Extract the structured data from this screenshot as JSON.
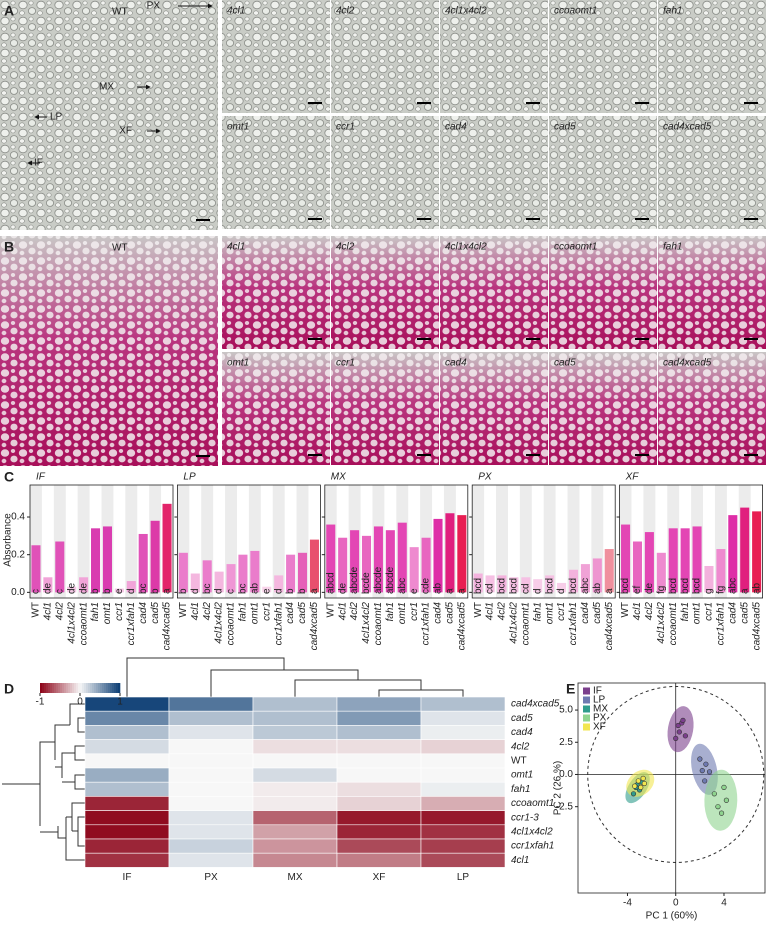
{
  "panel_labels": [
    "A",
    "B",
    "C",
    "D",
    "E"
  ],
  "micrographs": {
    "A": {
      "main": "WT",
      "panels": [
        "4cl1",
        "4cl2",
        "4cl1x4cl2",
        "ccoaomt1",
        "fah1",
        "omt1",
        "ccr1",
        "cad4",
        "cad5",
        "cad4xcad5"
      ],
      "annotations": [
        "PX",
        "MX",
        "LP",
        "XF",
        "IF"
      ]
    },
    "B": {
      "main": "WT",
      "panels": [
        "4cl1",
        "4cl2",
        "4cl1x4cl2",
        "ccoaomt1",
        "fah1",
        "omt1",
        "ccr1",
        "cad4",
        "cad5",
        "cad4xcad5"
      ]
    }
  },
  "chart_data": [
    {
      "type": "bar",
      "title": "IF",
      "ylabel": "Absorbance",
      "categories": [
        "WT",
        "4cl1",
        "4cl2",
        "4cl1x4cl2",
        "ccoaomt1",
        "fah1",
        "omt1",
        "ccr1",
        "ccr1xfah1",
        "cad4",
        "cad5",
        "cad4xcad5"
      ],
      "values": [
        0.25,
        0.08,
        0.27,
        0.03,
        0.08,
        0.34,
        0.35,
        0.02,
        0.06,
        0.31,
        0.38,
        0.47
      ],
      "value_labels": [
        "c",
        "de",
        "c",
        "de",
        "de",
        "b",
        "b",
        "e",
        "d",
        "bc",
        "b",
        "a"
      ],
      "colors": [
        "#e052b8",
        "#f1a4d8",
        "#e052b8",
        "#f6c8e6",
        "#f1a4d8",
        "#d93cb0",
        "#d93cb0",
        "#f6c8e6",
        "#f1a4d8",
        "#e052b8",
        "#dc3aa8",
        "#e3246a"
      ],
      "ylim": [
        -0.03,
        0.57
      ],
      "yticks": [
        {
          "value": 0,
          "label": "0.0"
        },
        0.2,
        0.4
      ]
    },
    {
      "type": "bar",
      "title": "LP",
      "categories": [
        "WT",
        "4cl1",
        "4cl2",
        "4cl1x4cl2",
        "ccoaomt1",
        "fah1",
        "omt1",
        "ccr1",
        "ccr1xfah1",
        "cad4",
        "cad5",
        "cad4xcad5"
      ],
      "values": [
        0.21,
        0.1,
        0.17,
        0.11,
        0.15,
        0.2,
        0.22,
        0.03,
        0.09,
        0.2,
        0.21,
        0.28
      ],
      "value_labels": [
        "b",
        "d",
        "bc",
        "d",
        "c",
        "bc",
        "ab",
        "e",
        "d",
        "b",
        "b",
        "a"
      ],
      "colors": [
        "#ea7ccb",
        "#f4b7df",
        "#ea7ccb",
        "#f4b7df",
        "#ef96d5",
        "#ea7ccb",
        "#ea7ccb",
        "#f8d3ea",
        "#f4b7df",
        "#ea7ccb",
        "#e560b8",
        "#e8506e"
      ],
      "ylim": [
        -0.03,
        0.57
      ]
    },
    {
      "type": "bar",
      "title": "MX",
      "categories": [
        "WT",
        "4cl1",
        "4cl2",
        "4cl1x4cl2",
        "ccoaomt1",
        "fah1",
        "omt1",
        "ccr1",
        "ccr1xfah1",
        "cad4",
        "cad5",
        "cad4xcad5"
      ],
      "values": [
        0.36,
        0.29,
        0.33,
        0.3,
        0.35,
        0.33,
        0.37,
        0.24,
        0.29,
        0.39,
        0.42,
        0.41
      ],
      "value_labels": [
        "abcd",
        "de",
        "abcde",
        "bcde",
        "abcde",
        "abcde",
        "abc",
        "e",
        "cde",
        "ab",
        "a",
        "a"
      ],
      "colors": [
        "#e346b4",
        "#e866c0",
        "#e346b4",
        "#e866c0",
        "#e346b4",
        "#e346b4",
        "#e346b4",
        "#ee8acf",
        "#e866c0",
        "#de2ea7",
        "#e01f7e",
        "#e81e52"
      ],
      "ylim": [
        -0.03,
        0.57
      ]
    },
    {
      "type": "bar",
      "title": "PX",
      "categories": [
        "WT",
        "4cl1",
        "4cl2",
        "4cl1x4cl2",
        "ccoaomt1",
        "fah1",
        "omt1",
        "ccr1",
        "ccr1xfah1",
        "cad4",
        "cad5",
        "cad4xcad5"
      ],
      "values": [
        0.1,
        0.09,
        0.09,
        0.08,
        0.08,
        0.07,
        0.09,
        0.05,
        0.12,
        0.15,
        0.18,
        0.23
      ],
      "value_labels": [
        "bcd",
        "cd",
        "bcd",
        "bcd",
        "cd",
        "d",
        "bcd",
        "d",
        "bcd",
        "abc",
        "ab",
        "a"
      ],
      "colors": [
        "#f3b2dd",
        "#f5c0e3",
        "#f3b2dd",
        "#f5c0e3",
        "#f5c0e3",
        "#f7cde8",
        "#f5c0e3",
        "#f7cde8",
        "#f3b2dd",
        "#f0a2d6",
        "#ee95d0",
        "#f0909e"
      ],
      "ylim": [
        -0.03,
        0.57
      ]
    },
    {
      "type": "bar",
      "title": "XF",
      "categories": [
        "WT",
        "4cl1",
        "4cl2",
        "4cl1x4cl2",
        "ccoaomt1",
        "fah1",
        "omt1",
        "ccr1",
        "ccr1xfah1",
        "cad4",
        "cad5",
        "cad4xcad5"
      ],
      "values": [
        0.36,
        0.27,
        0.32,
        0.21,
        0.34,
        0.34,
        0.35,
        0.14,
        0.23,
        0.41,
        0.45,
        0.43
      ],
      "value_labels": [
        "bcd",
        "ef",
        "de",
        "fg",
        "bcd",
        "bcd",
        "bcd",
        "g",
        "fg",
        "abc",
        "a",
        "ab"
      ],
      "colors": [
        "#e346b4",
        "#e866c0",
        "#e346b4",
        "#ee8acf",
        "#e346b4",
        "#e346b4",
        "#e346b4",
        "#f3b2dd",
        "#ee8acf",
        "#de2ea7",
        "#e01f7e",
        "#e81e52"
      ],
      "ylim": [
        -0.03,
        0.57
      ]
    },
    {
      "type": "heatmap",
      "columns": [
        "IF",
        "PX",
        "MX",
        "XF",
        "LP"
      ],
      "rows": [
        "cad4xcad5",
        "cad5",
        "cad4",
        "4cl2",
        "WT",
        "omt1",
        "fah1",
        "ccoaomt1",
        "ccr1-3",
        "4cl1x4cl2",
        "ccr1xfah1",
        "4cl1"
      ],
      "values": [
        [
          0.95,
          0.7,
          0.3,
          0.45,
          0.3
        ],
        [
          0.6,
          0.3,
          0.3,
          0.5,
          0.1
        ],
        [
          0.3,
          0.1,
          0.25,
          0.3,
          0.05
        ],
        [
          0.15,
          0,
          -0.1,
          -0.1,
          -0.15
        ],
        [
          0,
          0,
          0,
          0,
          0
        ],
        [
          0.4,
          0,
          0.15,
          0,
          0
        ],
        [
          0.3,
          0,
          -0.05,
          -0.1,
          0.05
        ],
        [
          -0.85,
          0,
          -0.05,
          -0.15,
          -0.3
        ],
        [
          -0.95,
          0.1,
          -0.6,
          -0.9,
          -0.9
        ],
        [
          -0.95,
          0.1,
          -0.35,
          -0.85,
          -0.8
        ],
        [
          -0.85,
          0.2,
          -0.4,
          -0.7,
          -0.75
        ],
        [
          -0.8,
          0.1,
          -0.45,
          -0.5,
          -0.7
        ]
      ],
      "colorscale": {
        "low": "#8b0015",
        "mid": "#f7f7f7",
        "high": "#0b3d73"
      },
      "zlim": [
        -1,
        1
      ],
      "zticks": [
        -1,
        0,
        1
      ]
    },
    {
      "type": "scatter",
      "xlabel": "PC 1 (60%)",
      "ylabel": "PC 2 (26 %)",
      "xlim": [
        -8.1,
        7.4
      ],
      "ylim": [
        -9.2,
        7.1
      ],
      "xticks": [
        -4,
        0,
        4
      ],
      "yticks": [
        -2.5,
        {
          "value": 0,
          "label": "0.0"
        },
        2.5,
        {
          "value": 5,
          "label": "5.0"
        }
      ],
      "series": [
        {
          "name": "IF",
          "color": "#7b3f8c",
          "x": [
            0,
            0.2,
            0.5,
            0.3,
            0.6,
            0.8
          ],
          "y": [
            2.8,
            3.8,
            4.0,
            3.3,
            4.2,
            3.0
          ]
        },
        {
          "name": "LP",
          "color": "#6e79b0",
          "x": [
            2.0,
            2.5,
            2.2,
            2.8,
            2.4
          ],
          "y": [
            1.2,
            0.8,
            0.3,
            0.2,
            -0.5
          ]
        },
        {
          "name": "MX",
          "color": "#2f9c8c",
          "x": [
            -3.2,
            -3.0,
            -3.5,
            -2.8,
            -3.3
          ],
          "y": [
            -0.8,
            -1.2,
            -1.5,
            -0.6,
            -1.0
          ]
        },
        {
          "name": "PX",
          "color": "#8fd48f",
          "x": [
            3.2,
            4.0,
            3.5,
            4.2,
            3.8
          ],
          "y": [
            -1.5,
            -1.0,
            -2.5,
            -2.0,
            -3.0
          ]
        },
        {
          "name": "XF",
          "color": "#f2e650",
          "x": [
            -2.7,
            -3.1,
            -2.9,
            -2.6,
            -3.4
          ],
          "y": [
            -0.3,
            -0.5,
            -1.0,
            -0.7,
            -0.9
          ]
        }
      ]
    }
  ]
}
